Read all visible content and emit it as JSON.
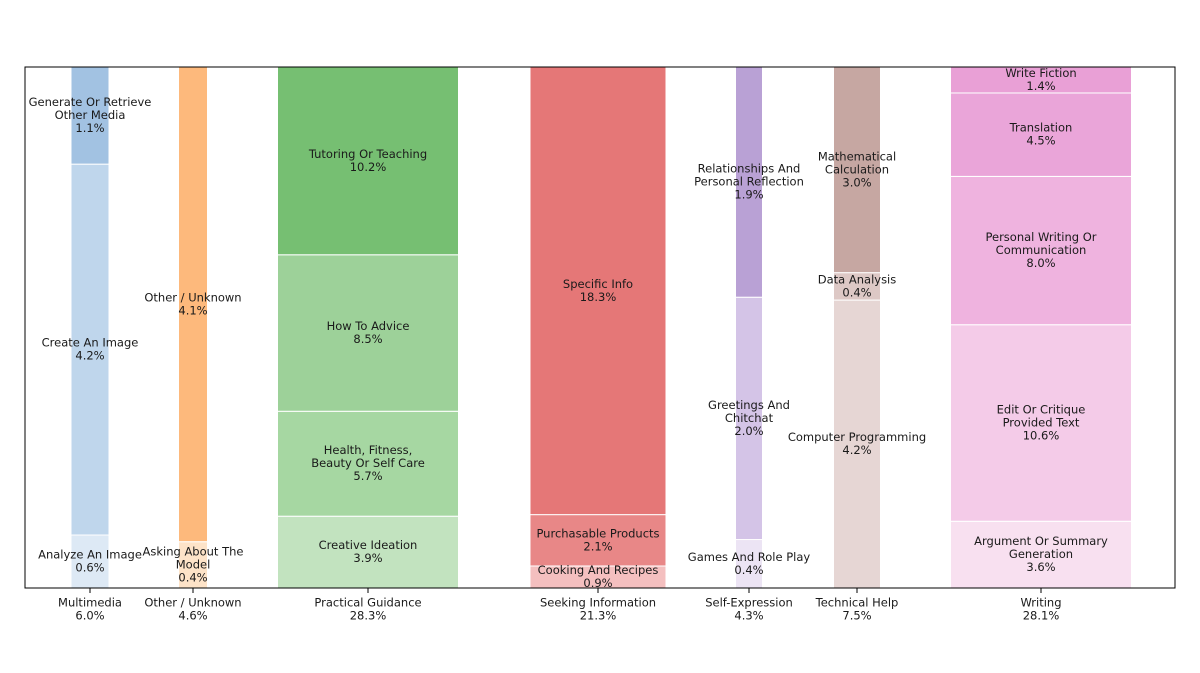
{
  "chart_data": {
    "type": "bar",
    "title": "",
    "xlabel": "",
    "ylabel": "",
    "ylim": [
      0,
      1
    ],
    "grid": false,
    "legend": "none",
    "groups": [
      {
        "name": "Multimedia",
        "total": "6.0%",
        "color": "#a2c2e2",
        "segments": [
          {
            "label": "Analyze An Image",
            "value": 0.6,
            "value_label": "0.6%",
            "color": "#dde9f5"
          },
          {
            "label": "Create An Image",
            "value": 4.2,
            "value_label": "4.2%",
            "color": "#bfd6ec"
          },
          {
            "label": "Generate Or Retrieve Other Media",
            "lines": [
              "Generate Or Retrieve",
              "Other Media"
            ],
            "value": 1.1,
            "value_label": "1.1%",
            "color": "#a2c2e2"
          }
        ]
      },
      {
        "name": "Other / Unknown",
        "total": "4.6%",
        "color": "#fdb97c",
        "segments": [
          {
            "label": "Asking About The Model",
            "lines": [
              "Asking About The",
              "Model"
            ],
            "value": 0.4,
            "value_label": "0.4%",
            "color": "#fde3c8"
          },
          {
            "label": "Other / Unknown",
            "value": 4.1,
            "value_label": "4.1%",
            "color": "#fdb97c"
          }
        ]
      },
      {
        "name": "Practical Guidance",
        "total": "28.3%",
        "color": "#76bf72",
        "segments": [
          {
            "label": "Creative Ideation",
            "value": 3.9,
            "value_label": "3.9%",
            "color": "#c2e3bf"
          },
          {
            "label": "Health, Fitness, Beauty Or Self Care",
            "lines": [
              "Health, Fitness,",
              "Beauty Or Self Care"
            ],
            "value": 5.7,
            "value_label": "5.7%",
            "color": "#a6d7a2"
          },
          {
            "label": "How To Advice",
            "value": 8.5,
            "value_label": "8.5%",
            "color": "#9dd199"
          },
          {
            "label": "Tutoring Or Teaching",
            "value": 10.2,
            "value_label": "10.2%",
            "color": "#76bf72"
          }
        ]
      },
      {
        "name": "Seeking Information",
        "total": "21.3%",
        "color": "#e57777",
        "segments": [
          {
            "label": "Cooking And Recipes",
            "value": 0.9,
            "value_label": "0.9%",
            "color": "#f4bfbf"
          },
          {
            "label": "Purchasable Products",
            "value": 2.1,
            "value_label": "2.1%",
            "color": "#e88787"
          },
          {
            "label": "Specific Info",
            "value": 18.3,
            "value_label": "18.3%",
            "color": "#e57777"
          }
        ]
      },
      {
        "name": "Self-Expression",
        "total": "4.3%",
        "color": "#b9a1d5",
        "segments": [
          {
            "label": "Games And Role Play",
            "value": 0.4,
            "value_label": "0.4%",
            "color": "#ece4f4"
          },
          {
            "label": "Greetings And Chitchat",
            "lines": [
              "Greetings And",
              "Chitchat"
            ],
            "value": 2.0,
            "value_label": "2.0%",
            "color": "#d4c4e7"
          },
          {
            "label": "Relationships And Personal Reflection",
            "lines": [
              "Relationships And",
              "Personal Reflection"
            ],
            "value": 1.9,
            "value_label": "1.9%",
            "color": "#b9a1d5"
          }
        ]
      },
      {
        "name": "Technical Help",
        "total": "7.5%",
        "color": "#c6a7a2",
        "segments": [
          {
            "label": "Computer Programming",
            "value": 4.2,
            "value_label": "4.2%",
            "color": "#e6d6d4"
          },
          {
            "label": "Data Analysis",
            "value": 0.4,
            "value_label": "0.4%",
            "color": "#ddc8c5"
          },
          {
            "label": "Mathematical Calculation",
            "lines": [
              "Mathematical",
              "Calculation"
            ],
            "value": 3.0,
            "value_label": "3.0%",
            "color": "#c6a7a2"
          }
        ]
      },
      {
        "name": "Writing",
        "total": "28.1%",
        "color": "#e9a0d6",
        "segments": [
          {
            "label": "Argument Or Summary Generation",
            "lines": [
              "Argument Or Summary",
              "Generation"
            ],
            "value": 3.6,
            "value_label": "3.6%",
            "color": "#f8e0f0"
          },
          {
            "label": "Edit Or Critique Provided Text",
            "lines": [
              "Edit Or Critique",
              "Provided Text"
            ],
            "value": 10.6,
            "value_label": "10.6%",
            "color": "#f4cbe8"
          },
          {
            "label": "Personal Writing Or Communication",
            "lines": [
              "Personal Writing Or",
              "Communication"
            ],
            "value": 8.0,
            "value_label": "8.0%",
            "color": "#efb3df"
          },
          {
            "label": "Translation",
            "value": 4.5,
            "value_label": "4.5%",
            "color": "#eaa5d9"
          },
          {
            "label": "Write Fiction",
            "value": 1.4,
            "value_label": "1.4%",
            "color": "#e9a0d6"
          }
        ]
      }
    ]
  }
}
